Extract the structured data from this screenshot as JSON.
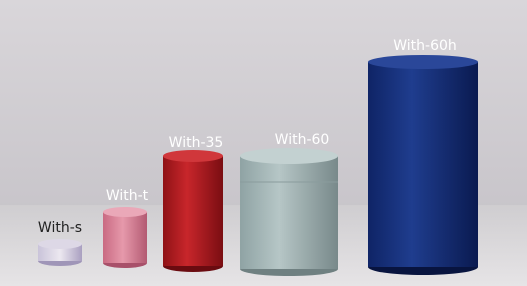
{
  "items": [
    {
      "label": "With-s"
    },
    {
      "label": "With-t"
    },
    {
      "label": "With-35"
    },
    {
      "label": "With-60"
    },
    {
      "label": "With-60h"
    }
  ]
}
